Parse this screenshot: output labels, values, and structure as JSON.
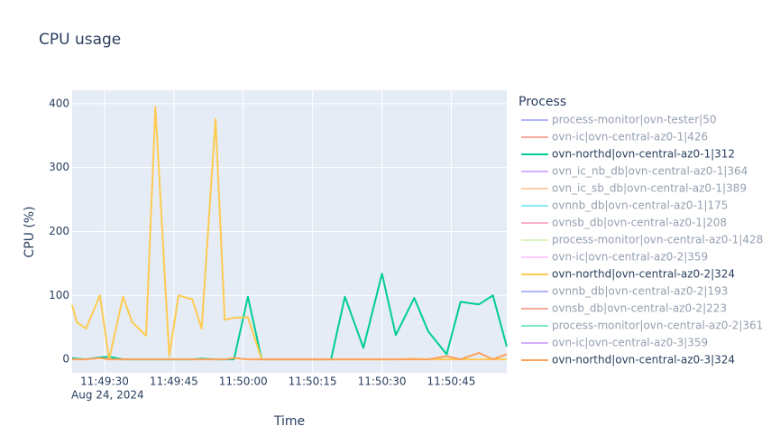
{
  "chart_data": {
    "type": "line",
    "title": "CPU usage",
    "x_label": "Time",
    "y_label": "CPU (%)",
    "legend_title": "Process",
    "x_date_label": "Aug 24, 2024",
    "x": [
      "2024-08-24 11:49:23",
      "2024-08-24 11:49:24",
      "2024-08-24 11:49:26",
      "2024-08-24 11:49:29",
      "2024-08-24 11:49:31",
      "2024-08-24 11:49:34",
      "2024-08-24 11:49:36",
      "2024-08-24 11:49:39",
      "2024-08-24 11:49:41",
      "2024-08-24 11:49:44",
      "2024-08-24 11:49:46",
      "2024-08-24 11:49:49",
      "2024-08-24 11:49:51",
      "2024-08-24 11:49:54",
      "2024-08-24 11:49:56",
      "2024-08-24 11:49:58",
      "2024-08-24 11:50:01",
      "2024-08-24 11:50:04",
      "2024-08-24 11:50:07",
      "2024-08-24 11:50:19",
      "2024-08-24 11:50:22",
      "2024-08-24 11:50:26",
      "2024-08-24 11:50:30",
      "2024-08-24 11:50:33",
      "2024-08-24 11:50:37",
      "2024-08-24 11:50:40",
      "2024-08-24 11:50:44",
      "2024-08-24 11:50:47",
      "2024-08-24 11:50:51",
      "2024-08-24 11:50:54",
      "2024-08-24 11:50:57"
    ],
    "xlim": [
      "2024-08-24 11:49:23",
      "2024-08-24 11:50:57"
    ],
    "xticks": [
      {
        "value": "2024-08-24 11:49:30",
        "label": "11:49:30"
      },
      {
        "value": "2024-08-24 11:49:45",
        "label": "11:49:45"
      },
      {
        "value": "2024-08-24 11:50:00",
        "label": "11:50:00"
      },
      {
        "value": "2024-08-24 11:50:15",
        "label": "11:50:15"
      },
      {
        "value": "2024-08-24 11:50:30",
        "label": "11:50:30"
      },
      {
        "value": "2024-08-24 11:50:45",
        "label": "11:50:45"
      }
    ],
    "ylim": [
      -21,
      421
    ],
    "yticks": [
      0,
      100,
      200,
      300,
      400
    ],
    "grid": true,
    "legend": "right",
    "series": [
      {
        "name": "process-monitor|ovn-tester|50",
        "color": "#636efa",
        "visible": "legendonly"
      },
      {
        "name": "ovn-ic|ovn-central-az0-1|426",
        "color": "#EF553B",
        "visible": "legendonly"
      },
      {
        "name": "ovn-northd|ovn-central-az0-1|312",
        "color": "#00cc96",
        "values": [
          2,
          1,
          0,
          3,
          4,
          0,
          0,
          0,
          0,
          0,
          0,
          0,
          1,
          0,
          0,
          0,
          98,
          0,
          0,
          0,
          98,
          18,
          134,
          38,
          96,
          44,
          8,
          90,
          86,
          100,
          20
        ]
      },
      {
        "name": "ovn_ic_nb_db|ovn-central-az0-1|364",
        "color": "#ab63fa",
        "visible": "legendonly"
      },
      {
        "name": "ovn_ic_sb_db|ovn-central-az0-1|389",
        "color": "#FFA15A",
        "visible": "legendonly"
      },
      {
        "name": "ovnnb_db|ovn-central-az0-1|175",
        "color": "#19d3f3",
        "visible": "legendonly"
      },
      {
        "name": "ovnsb_db|ovn-central-az0-1|208",
        "color": "#FF6692",
        "visible": "legendonly"
      },
      {
        "name": "process-monitor|ovn-central-az0-1|428",
        "color": "#B6E880",
        "visible": "legendonly"
      },
      {
        "name": "ovn-ic|ovn-central-az0-2|359",
        "color": "#FF97FF",
        "visible": "legendonly"
      },
      {
        "name": "ovn-northd|ovn-central-az0-2|324",
        "color": "#FECB52",
        "values": [
          85,
          58,
          48,
          100,
          0,
          98,
          58,
          37,
          395,
          5,
          100,
          94,
          48,
          376,
          62,
          65,
          66,
          0,
          0,
          0,
          0,
          0,
          0,
          0,
          1,
          0,
          0,
          0,
          0,
          0,
          0
        ]
      },
      {
        "name": "ovnnb_db|ovn-central-az0-2|193",
        "color": "#636efa",
        "visible": "legendonly"
      },
      {
        "name": "ovnsb_db|ovn-central-az0-2|223",
        "color": "#EF553B",
        "visible": "legendonly"
      },
      {
        "name": "process-monitor|ovn-central-az0-2|361",
        "color": "#00cc96",
        "visible": "legendonly"
      },
      {
        "name": "ovn-ic|ovn-central-az0-3|359",
        "color": "#ab63fa",
        "visible": "legendonly"
      },
      {
        "name": "ovn-northd|ovn-central-az0-3|324",
        "color": "#FFA15A",
        "values": [
          0,
          0,
          0,
          2,
          0,
          0,
          0,
          0,
          0,
          0,
          0,
          0,
          0,
          0,
          0,
          2,
          0,
          0,
          0,
          0,
          0,
          0,
          0,
          0,
          0,
          0,
          5,
          0,
          10,
          0,
          8
        ]
      }
    ]
  }
}
